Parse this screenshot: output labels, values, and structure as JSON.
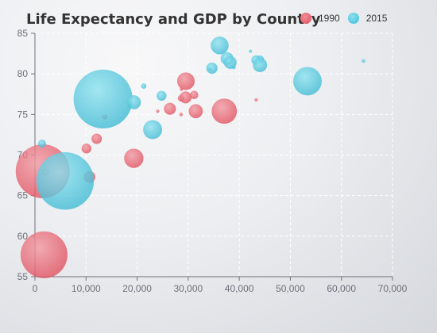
{
  "chart_data": {
    "type": "scatter",
    "title": "Life Expectancy and GDP by Country",
    "xlabel": "",
    "ylabel": "",
    "xlim": [
      0,
      70000
    ],
    "ylim": [
      55,
      85
    ],
    "x_ticks": [
      "0",
      "10,000",
      "20,000",
      "30,000",
      "40,000",
      "50,000",
      "60,000",
      "70,000"
    ],
    "y_ticks": [
      "55",
      "60",
      "65",
      "70",
      "75",
      "80",
      "85"
    ],
    "legend": {
      "placement": "top-right",
      "entries": [
        "1990",
        "2015"
      ]
    },
    "grid": true,
    "bubble_size_note": "bubble area encodes a third unlabeled quantity",
    "series": [
      {
        "name": "1990",
        "color": "#e8606e",
        "points": [
          {
            "x": 28604,
            "y": 77,
            "size": 17096869
          },
          {
            "x": 31163,
            "y": 77.4,
            "size": 27662440
          },
          {
            "x": 1516,
            "y": 68,
            "size": 1154605773
          },
          {
            "x": 13670,
            "y": 74.7,
            "size": 10582082
          },
          {
            "x": 28599,
            "y": 75,
            "size": 4986705
          },
          {
            "x": 29476,
            "y": 77.1,
            "size": 56943299
          },
          {
            "x": 31476,
            "y": 75.4,
            "size": 78958237
          },
          {
            "x": 28666,
            "y": 78.1,
            "size": 254830
          },
          {
            "x": 1777,
            "y": 57.7,
            "size": 870601776
          },
          {
            "x": 29550,
            "y": 79.1,
            "size": 122249285
          },
          {
            "x": 2076,
            "y": 67.9,
            "size": 20194354
          },
          {
            "x": 12087,
            "y": 72,
            "size": 42972254
          },
          {
            "x": 24021,
            "y": 75.4,
            "size": 3397534
          },
          {
            "x": 43296,
            "y": 76.8,
            "size": 4240375
          },
          {
            "x": 10088,
            "y": 70.8,
            "size": 38195258
          },
          {
            "x": 19349,
            "y": 69.6,
            "size": 147568552
          },
          {
            "x": 10670,
            "y": 67.3,
            "size": 53994605
          },
          {
            "x": 26424,
            "y": 75.7,
            "size": 57110117
          },
          {
            "x": 37062,
            "y": 75.4,
            "size": 252847810
          }
        ]
      },
      {
        "name": "2015",
        "color": "#4fc8df",
        "points": [
          {
            "x": 44056,
            "y": 81.8,
            "size": 23968973
          },
          {
            "x": 43294,
            "y": 81.7,
            "size": 35939927
          },
          {
            "x": 13334,
            "y": 76.9,
            "size": 1376048943
          },
          {
            "x": 21291,
            "y": 78.5,
            "size": 11389562
          },
          {
            "x": 38923,
            "y": 80.8,
            "size": 5503457
          },
          {
            "x": 37599,
            "y": 81.9,
            "size": 64395345
          },
          {
            "x": 44053,
            "y": 81.1,
            "size": 80688545
          },
          {
            "x": 42182,
            "y": 82.8,
            "size": 329425
          },
          {
            "x": 5903,
            "y": 66.8,
            "size": 1311050527
          },
          {
            "x": 36162,
            "y": 83.5,
            "size": 126573481
          },
          {
            "x": 1390,
            "y": 71.4,
            "size": 25155317
          },
          {
            "x": 34644,
            "y": 80.7,
            "size": 50293439
          },
          {
            "x": 34186,
            "y": 80.6,
            "size": 4528526
          },
          {
            "x": 64304,
            "y": 81.6,
            "size": 5210967
          },
          {
            "x": 24787,
            "y": 77.3,
            "size": 38611794
          },
          {
            "x": 23038,
            "y": 73.13,
            "size": 143456918
          },
          {
            "x": 19360,
            "y": 76.5,
            "size": 78665830
          },
          {
            "x": 38225,
            "y": 81.4,
            "size": 64715810
          },
          {
            "x": 53354,
            "y": 79.1,
            "size": 321773631
          }
        ]
      }
    ]
  }
}
